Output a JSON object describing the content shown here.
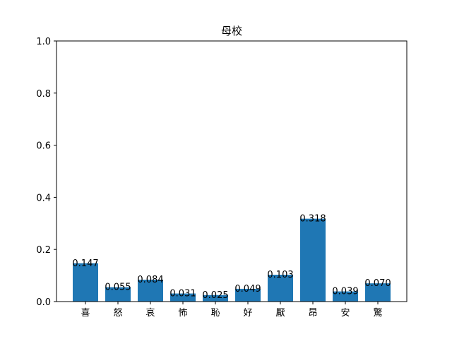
{
  "chart_data": {
    "type": "bar",
    "title": "母校",
    "xlabel": "",
    "ylabel": "",
    "categories": [
      "喜",
      "怒",
      "哀",
      "怖",
      "恥",
      "好",
      "厭",
      "昂",
      "安",
      "驚"
    ],
    "values": [
      0.147,
      0.055,
      0.084,
      0.031,
      0.025,
      0.049,
      0.103,
      0.318,
      0.039,
      0.07
    ],
    "data_labels": [
      "0.147",
      "0.055",
      "0.084",
      "0.031",
      "0.025",
      "0.049",
      "0.103",
      "0.318",
      "0.039",
      "0.070"
    ],
    "ylim": [
      0,
      1.0
    ],
    "yticks": [
      0.0,
      0.2,
      0.4,
      0.6,
      0.8,
      1.0
    ],
    "ytick_labels": [
      "0.0",
      "0.2",
      "0.4",
      "0.6",
      "0.8",
      "1.0"
    ],
    "grid": false,
    "bar_color": "#1f77b4"
  }
}
